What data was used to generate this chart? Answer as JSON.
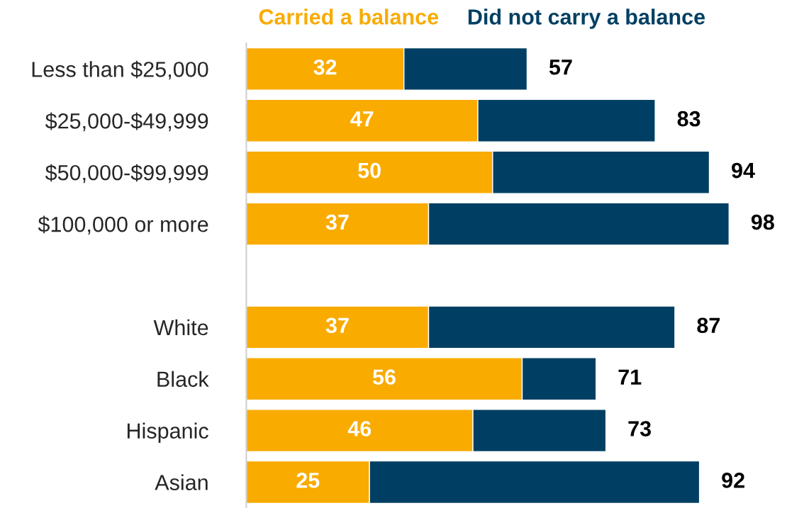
{
  "chart_data": {
    "type": "bar",
    "orientation": "horizontal",
    "stacked": true,
    "categories": [
      "Less than $25,000",
      "$25,000-$49,999",
      "$50,000-$99,999",
      "$100,000 or more",
      null,
      "White",
      "Black",
      "Hispanic",
      "Asian"
    ],
    "series": [
      {
        "name": "Carried a balance",
        "color": "#f9ab00",
        "values": [
          32,
          47,
          50,
          37,
          null,
          37,
          56,
          46,
          25
        ],
        "value_labels": [
          "32",
          "47",
          "50",
          "37",
          null,
          "37",
          "56",
          "46",
          "25"
        ]
      },
      {
        "name": "Did not carry a balance",
        "color": "#003f63",
        "values": [
          25,
          36,
          44,
          61,
          null,
          50,
          15,
          27,
          67
        ]
      }
    ],
    "totals": [
      "57",
      "83",
      "94",
      "98",
      null,
      "87",
      "71",
      "73",
      "92"
    ],
    "tick_labels": "y",
    "legend": "top",
    "grid": false
  }
}
